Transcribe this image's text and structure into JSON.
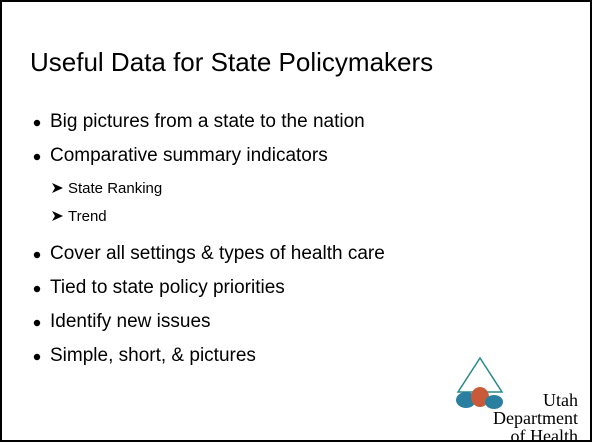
{
  "title": "Useful Data for State Policymakers",
  "bullets": [
    {
      "text": "Big pictures from a state to the nation"
    },
    {
      "text": "Comparative summary indicators",
      "sub": [
        "State Ranking",
        "Trend"
      ]
    },
    {
      "text": "Cover all settings & types of health care"
    },
    {
      "text": "Tied to state policy priorities"
    },
    {
      "text": "Identify new issues"
    },
    {
      "text": "Simple, short, & pictures"
    }
  ],
  "logo": {
    "lines": [
      "Utah",
      "Department",
      "of Health"
    ]
  }
}
